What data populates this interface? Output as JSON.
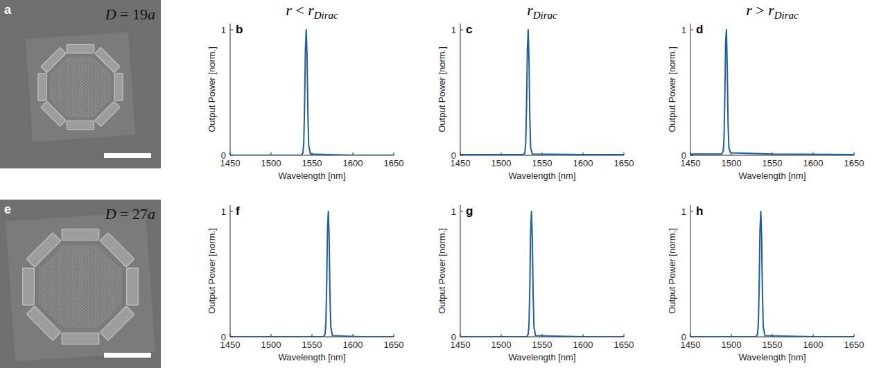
{
  "columns": [
    {
      "text": "r < r",
      "subscript": "Dirac"
    },
    {
      "text": "r",
      "subscript": "Dirac"
    },
    {
      "text": "r > r",
      "subscript": "Dirac"
    }
  ],
  "images": [
    {
      "label": "a",
      "caption": "D = 19a"
    },
    {
      "label": "e",
      "caption": "D = 27a"
    }
  ],
  "chart_data": [
    {
      "type": "line",
      "panel_label": "b",
      "xlabel": "Wavelength [nm]",
      "ylabel": "Output Power [norm.]",
      "xlim": [
        1450,
        1650
      ],
      "xticks": [
        1450,
        1500,
        1550,
        1600,
        1650
      ],
      "ylim": [
        0,
        1.05
      ],
      "yticks": [
        0,
        1
      ],
      "x": [
        1450,
        1537,
        1539,
        1540,
        1541,
        1542,
        1543,
        1544,
        1545,
        1546,
        1548,
        1600,
        1650
      ],
      "series": [
        {
          "color": "#1f5d9c",
          "values": [
            0,
            0,
            0.02,
            0.1,
            0.4,
            0.85,
            1,
            0.8,
            0.35,
            0.08,
            0.01,
            0,
            0
          ]
        }
      ]
    },
    {
      "type": "line",
      "panel_label": "c",
      "xlabel": "Wavelength [nm]",
      "ylabel": "Output Power [norm.]",
      "xlim": [
        1450,
        1650
      ],
      "xticks": [
        1450,
        1500,
        1550,
        1600,
        1650
      ],
      "ylim": [
        0,
        1.05
      ],
      "yticks": [
        0,
        1
      ],
      "x": [
        1450,
        1527,
        1529,
        1530,
        1531,
        1532,
        1533,
        1534,
        1535,
        1536,
        1538,
        1600,
        1650
      ],
      "series": [
        {
          "color": "#1f5d9c",
          "values": [
            0.005,
            0.005,
            0.02,
            0.1,
            0.4,
            0.85,
            1,
            0.75,
            0.3,
            0.06,
            0.01,
            0.005,
            0.005
          ]
        }
      ]
    },
    {
      "type": "line",
      "panel_label": "d",
      "xlabel": "Wavelength [nm]",
      "ylabel": "Output Power [norm.]",
      "xlim": [
        1450,
        1650
      ],
      "xticks": [
        1450,
        1500,
        1550,
        1600,
        1650
      ],
      "ylim": [
        0,
        1.05
      ],
      "yticks": [
        0,
        1
      ],
      "x": [
        1450,
        1488,
        1490,
        1491,
        1492,
        1493,
        1494,
        1495,
        1496,
        1497,
        1499,
        1550,
        1650
      ],
      "series": [
        {
          "color": "#1f5d9c",
          "values": [
            0.01,
            0.01,
            0.03,
            0.12,
            0.45,
            0.9,
            1,
            0.7,
            0.25,
            0.06,
            0.02,
            0.01,
            0.005
          ]
        }
      ]
    },
    {
      "type": "line",
      "panel_label": "f",
      "xlabel": "Wavelength [nm]",
      "ylabel": "Output Power [norm.]",
      "xlim": [
        1450,
        1650
      ],
      "xticks": [
        1450,
        1500,
        1550,
        1600,
        1650
      ],
      "ylim": [
        0,
        1.05
      ],
      "yticks": [
        0,
        1
      ],
      "x": [
        1450,
        1564,
        1566,
        1567,
        1568,
        1569,
        1570,
        1571,
        1572,
        1573,
        1575,
        1610,
        1650
      ],
      "series": [
        {
          "color": "#1f5d9c",
          "values": [
            0,
            0,
            0.02,
            0.1,
            0.4,
            0.85,
            1,
            0.8,
            0.35,
            0.08,
            0.01,
            0,
            0
          ]
        }
      ]
    },
    {
      "type": "line",
      "panel_label": "g",
      "xlabel": "Wavelength [nm]",
      "ylabel": "Output Power [norm.]",
      "xlim": [
        1450,
        1650
      ],
      "xticks": [
        1450,
        1500,
        1550,
        1600,
        1650
      ],
      "ylim": [
        0,
        1.05
      ],
      "yticks": [
        0,
        1
      ],
      "x": [
        1450,
        1531,
        1533,
        1534,
        1535,
        1536,
        1537,
        1538,
        1539,
        1540,
        1542,
        1600,
        1650
      ],
      "series": [
        {
          "color": "#1f5d9c",
          "values": [
            0,
            0,
            0.02,
            0.1,
            0.4,
            0.85,
            1,
            0.8,
            0.35,
            0.08,
            0.01,
            0,
            0
          ]
        }
      ]
    },
    {
      "type": "line",
      "panel_label": "h",
      "xlabel": "Wavelength [nm]",
      "ylabel": "Output Power [norm.]",
      "xlim": [
        1450,
        1650
      ],
      "xticks": [
        1450,
        1500,
        1550,
        1600,
        1650
      ],
      "ylim": [
        0,
        1.05
      ],
      "yticks": [
        0,
        1
      ],
      "x": [
        1450,
        1530,
        1532,
        1533,
        1534,
        1535,
        1536,
        1537,
        1538,
        1539,
        1541,
        1600,
        1650
      ],
      "series": [
        {
          "color": "#1f5d9c",
          "values": [
            0,
            0,
            0.02,
            0.1,
            0.4,
            0.85,
            1,
            0.8,
            0.35,
            0.08,
            0.01,
            0,
            0
          ]
        }
      ]
    }
  ]
}
